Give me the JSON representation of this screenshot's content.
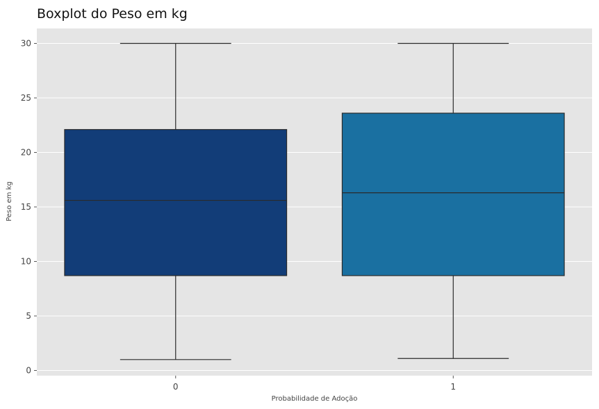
{
  "chart_data": {
    "type": "boxplot",
    "title": "Boxplot do Peso em kg",
    "xlabel": "Probabilidade de Adoção",
    "ylabel": "Peso em kg",
    "ylim": [
      -0.5,
      31.4
    ],
    "yticks": [
      0,
      5,
      10,
      15,
      20,
      25,
      30
    ],
    "grid": true,
    "background": "#E5E5E5",
    "grid_color": "#FFFFFF",
    "categories": [
      "0",
      "1"
    ],
    "boxes": [
      {
        "category": "0",
        "whisker_low": 1.0,
        "q1": 8.7,
        "median": 15.6,
        "q3": 22.1,
        "whisker_high": 30.0,
        "color": "#123D78"
      },
      {
        "category": "1",
        "whisker_low": 1.1,
        "q1": 8.7,
        "median": 16.3,
        "q3": 23.6,
        "whisker_high": 30.0,
        "color": "#1A70A1"
      }
    ]
  }
}
